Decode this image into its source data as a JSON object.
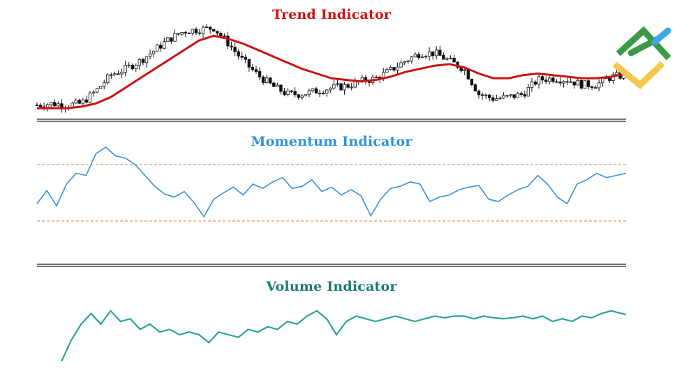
{
  "colors": {
    "trend_title": "#d40f0f",
    "trend_ma": "#cc1111",
    "candles": "#111111",
    "momentum_title": "#2b92dc",
    "momentum_line": "#3a8fd8",
    "band": "#e07840",
    "volume_title": "#1e7b6e",
    "volume_line": "#2aa595",
    "separator": "#222222",
    "logo_green": "#3a9a4a",
    "logo_blue": "#3ea6e8",
    "logo_yellow": "#f2c94c"
  },
  "logo": {
    "icon": "diamond-logo-icon"
  },
  "chart_data": [
    {
      "type": "candlestick",
      "title": "Trend Indicator",
      "x": [
        0,
        3,
        6,
        9,
        12,
        15,
        18,
        21,
        24,
        27,
        30,
        33,
        36,
        39,
        42,
        45,
        48,
        51,
        54,
        57,
        60,
        63,
        66,
        69,
        72,
        75,
        78,
        81,
        84,
        87,
        90,
        93,
        96,
        99,
        102,
        105,
        108,
        111,
        114,
        117,
        120
      ],
      "close": [
        5,
        6,
        5,
        6,
        14,
        24,
        28,
        33,
        40,
        47,
        52,
        53,
        54,
        44,
        33,
        24,
        17,
        12,
        12,
        14,
        16,
        17,
        20,
        22,
        27,
        33,
        38,
        38,
        33,
        28,
        12,
        9,
        10,
        12,
        21,
        22,
        21,
        18,
        18,
        23,
        24
      ],
      "series": [
        {
          "name": "",
          "values": [
            3,
            3,
            3,
            4,
            6,
            10,
            16,
            22,
            28,
            34,
            40,
            46,
            49,
            47,
            44,
            40,
            36,
            32,
            28,
            25,
            22,
            21,
            20,
            21,
            23,
            26,
            28,
            30,
            31,
            29,
            25,
            22,
            22,
            24,
            25,
            24,
            23,
            22,
            22,
            23,
            25
          ]
        }
      ],
      "xlim": [
        0,
        120
      ]
    },
    {
      "type": "line",
      "title": "Momentum Indicator",
      "x": [
        0,
        2,
        4,
        6,
        8,
        10,
        12,
        14,
        16,
        18,
        20,
        22,
        24,
        26,
        28,
        30,
        32,
        34,
        36,
        38,
        40,
        42,
        44,
        46,
        48,
        50,
        52,
        54,
        56,
        58,
        60,
        62,
        64,
        66,
        68,
        70,
        72,
        74,
        76,
        78,
        80,
        82,
        84,
        86,
        88,
        90,
        92,
        94,
        96,
        98,
        100,
        102,
        104,
        106,
        108,
        110,
        112,
        114,
        116,
        118,
        120
      ],
      "series": [
        {
          "name": "",
          "values": [
            0.4,
            0.7,
            0.35,
            0.85,
            1.1,
            1.05,
            1.55,
            1.7,
            1.5,
            1.45,
            1.3,
            1.05,
            0.8,
            0.62,
            0.55,
            0.68,
            0.42,
            0.1,
            0.5,
            0.65,
            0.78,
            0.6,
            0.85,
            0.75,
            0.9,
            1.0,
            0.75,
            0.8,
            0.95,
            0.68,
            0.78,
            0.6,
            0.72,
            0.58,
            0.12,
            0.5,
            0.75,
            0.8,
            0.9,
            0.85,
            0.45,
            0.55,
            0.6,
            0.72,
            0.78,
            0.82,
            0.5,
            0.45,
            0.6,
            0.72,
            0.8,
            1.05,
            0.85,
            0.55,
            0.4,
            0.85,
            0.95,
            1.1,
            1.0,
            1.05,
            1.1
          ]
        }
      ],
      "bands": [
        1.3,
        0.0
      ],
      "xlim": [
        0,
        120
      ]
    },
    {
      "type": "line",
      "title": "Volume Indicator",
      "x": [
        5,
        7,
        9,
        11,
        13,
        15,
        17,
        19,
        21,
        23,
        25,
        27,
        29,
        31,
        33,
        35,
        37,
        39,
        41,
        43,
        45,
        47,
        49,
        51,
        53,
        55,
        57,
        59,
        61,
        63,
        65,
        67,
        69,
        71,
        73,
        75,
        77,
        79,
        81,
        83,
        85,
        87,
        89,
        91,
        93,
        95,
        97,
        99,
        101,
        103,
        105,
        107,
        109,
        111,
        113,
        115,
        117,
        119,
        120
      ],
      "series": [
        {
          "name": "",
          "values": [
            0.0,
            0.4,
            0.7,
            0.9,
            0.7,
            0.95,
            0.75,
            0.8,
            0.6,
            0.7,
            0.55,
            0.6,
            0.5,
            0.55,
            0.5,
            0.35,
            0.55,
            0.5,
            0.45,
            0.6,
            0.55,
            0.65,
            0.6,
            0.75,
            0.7,
            0.85,
            0.95,
            0.8,
            0.5,
            0.75,
            0.85,
            0.8,
            0.75,
            0.8,
            0.85,
            0.8,
            0.75,
            0.8,
            0.85,
            0.82,
            0.85,
            0.85,
            0.8,
            0.85,
            0.82,
            0.8,
            0.82,
            0.85,
            0.8,
            0.85,
            0.75,
            0.8,
            0.75,
            0.85,
            0.82,
            0.9,
            0.95,
            0.9,
            0.88
          ]
        }
      ],
      "xlim": [
        0,
        120
      ]
    }
  ]
}
